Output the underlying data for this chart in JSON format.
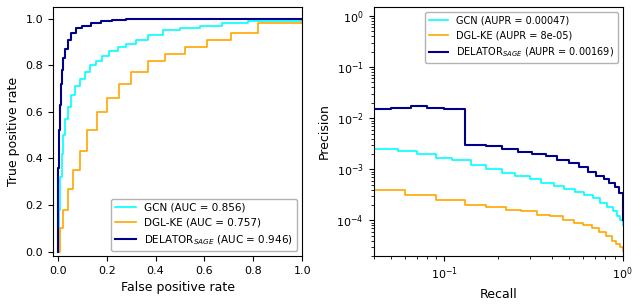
{
  "colors": {
    "gcn": "#00FFFF",
    "dglke": "#FFA500",
    "delator": "#00008B"
  },
  "roc": {
    "gcn_auc": 0.856,
    "dglke_auc": 0.757,
    "delator_auc": 0.946
  },
  "pr": {
    "gcn_aupr": 0.00047,
    "dglke_aupr": "8e-05",
    "delator_aupr": 0.00169
  },
  "roc_xlabel": "False positive rate",
  "roc_ylabel": "True positive rate",
  "pr_xlabel": "Recall",
  "pr_ylabel": "Precision",
  "figsize": [
    6.4,
    3.08
  ],
  "dpi": 100
}
